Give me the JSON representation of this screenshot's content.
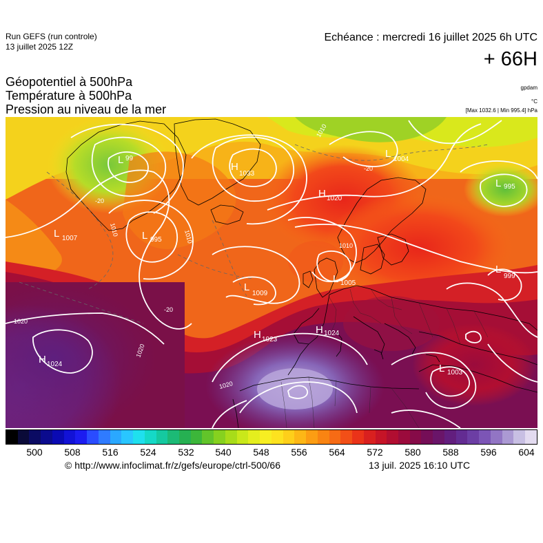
{
  "header": {
    "run_line1": "Run GEFS (run controle)",
    "run_line2": "13 juillet 2025 12Z",
    "echeance": "Echéance : mercredi 16 juillet 2025 6h UTC",
    "lead": "+ 66H"
  },
  "titles": {
    "line1": "Géopotentiel à 500hPa",
    "line2": "Température à 500hPa",
    "line3": "Pression au niveau de la mer"
  },
  "units": {
    "geopotential": "gpdam",
    "temperature": "°C",
    "minmax": "[Max 1032.6 | Min 995.4] hPa"
  },
  "pressure_centers": [
    {
      "type": "H",
      "value": "1033"
    },
    {
      "type": "H",
      "value": "1020"
    },
    {
      "type": "L",
      "value": "1004"
    },
    {
      "type": "L",
      "value": "995"
    },
    {
      "type": "L",
      "value": "1007"
    },
    {
      "type": "L",
      "value": "995"
    },
    {
      "type": "L",
      "value": "1009"
    },
    {
      "type": "L",
      "value": "1005"
    },
    {
      "type": "L",
      "value": "999"
    },
    {
      "type": "H",
      "value": "1023"
    },
    {
      "type": "H",
      "value": "1024"
    },
    {
      "type": "H",
      "value": "1024"
    },
    {
      "type": "L",
      "value": "1003"
    },
    {
      "type": "L",
      "value": "99"
    }
  ],
  "isobar_labels": [
    "1010",
    "1020",
    "1020",
    "1020",
    "1010",
    "1010",
    "1010",
    "-20",
    "-20",
    "-20"
  ],
  "colorbar": {
    "ticks": [
      "500",
      "508",
      "516",
      "524",
      "532",
      "540",
      "548",
      "556",
      "564",
      "572",
      "580",
      "588",
      "596",
      "604"
    ],
    "colors": [
      "#000000",
      "#0a0a38",
      "#0b0b63",
      "#0b0b8e",
      "#0a0ab3",
      "#1212d6",
      "#1c1cf0",
      "#2a4cff",
      "#2f7bff",
      "#2aa8ff",
      "#29c6ff",
      "#1fe0ee",
      "#15d9c7",
      "#15c9a0",
      "#1cba76",
      "#26b052",
      "#3cb63a",
      "#62c42a",
      "#86d11f",
      "#a8dc19",
      "#c9e81a",
      "#e4ee1e",
      "#f7ee22",
      "#fde21f",
      "#fecf1a",
      "#fdb716",
      "#fc9d13",
      "#f98412",
      "#f66b15",
      "#f24f17",
      "#ea3319",
      "#d9201f",
      "#c61427",
      "#b10e31",
      "#9b0b3c",
      "#860b48",
      "#750e57",
      "#6a1569",
      "#621e7e",
      "#632c92",
      "#6c3ea4",
      "#7c55b6",
      "#9275c4",
      "#ab99d3",
      "#c8bfe3",
      "#e3dbf0"
    ]
  },
  "footer": {
    "url": "© http://www.infoclimat.fr/z/gefs/europe/ctrl-500/66",
    "date": "13 juil. 2025 16:10 UTC"
  }
}
